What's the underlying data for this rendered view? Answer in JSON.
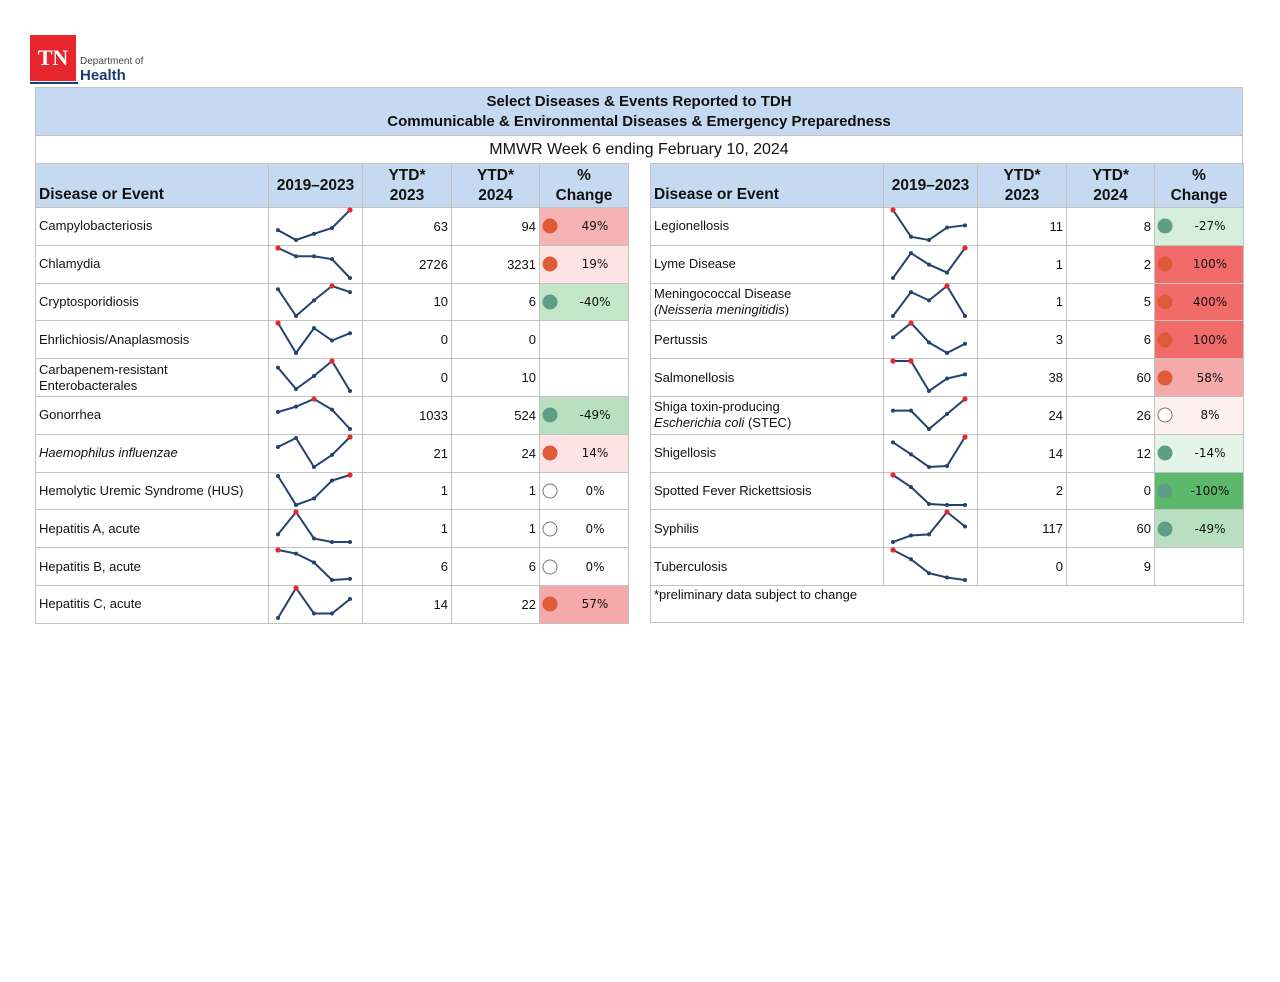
{
  "logo": {
    "mark": "TN",
    "line1": "Department of",
    "line2": "Health"
  },
  "header": {
    "title": [
      "Select Diseases & Events Reported to TDH",
      "Communicable & Environmental Diseases & Emergency Preparedness"
    ],
    "subtitle": "MMWR Week 6 ending February 10, 2024"
  },
  "columns": [
    [
      "Disease or Event"
    ],
    [
      "2019–2023"
    ],
    [
      "YTD*",
      "2023"
    ],
    [
      "YTD*",
      "2024"
    ],
    [
      "%",
      "Change"
    ]
  ],
  "left": [
    {
      "name": [
        [
          "Campylobacteriosis"
        ]
      ],
      "trend": [
        3.5,
        0.3,
        2.3,
        4.2,
        10
      ],
      "ytd2023": 63,
      "ytd2024": 94,
      "change": "49%",
      "fill": "#f6b3b3",
      "dot": "#e05a37"
    },
    {
      "name": [
        [
          "Chlamydia"
        ]
      ],
      "trend": [
        10,
        7.4,
        7.4,
        6.5,
        0.6
      ],
      "ytd2023": 2726,
      "ytd2024": 3231,
      "change": "19%",
      "fill": "#fde3e3",
      "dot": "#e05a37"
    },
    {
      "name": [
        [
          "Cryptosporidiosis"
        ]
      ],
      "trend": [
        9,
        0.6,
        5.5,
        10,
        8.1
      ],
      "ytd2023": 10,
      "ytd2024": 6,
      "change": "-40%",
      "fill": "#c3e6c9",
      "dot": "#5f9e86"
    },
    {
      "name": [
        [
          "Ehrlichiosis/Anaplasmosis"
        ]
      ],
      "trend": [
        10,
        0.6,
        8.4,
        4.5,
        6.8
      ],
      "ytd2023": 0,
      "ytd2024": 0
    },
    {
      "name": [
        [
          "Carbapenem-resistant"
        ],
        [
          "Enterobacterales"
        ]
      ],
      "trend": [
        8,
        1.6,
        5.5,
        10,
        1
      ],
      "ytd2023": 0,
      "ytd2024": 10
    },
    {
      "name": [
        [
          "Gonorrhea"
        ]
      ],
      "trend": [
        6.1,
        7.7,
        10,
        6.8,
        1
      ],
      "ytd2023": 1033,
      "ytd2024": 524,
      "change": "-49%",
      "fill": "#b8dfc0",
      "dot": "#5f9e86"
    },
    {
      "name": [
        [
          {
            "text": "Haemophilus influenzae",
            "italic": true
          }
        ]
      ],
      "trend": [
        7.1,
        9.7,
        1.3,
        4.8,
        10
      ],
      "ytd2023": 21,
      "ytd2024": 24,
      "change": "14%",
      "fill": "#fde3e3",
      "dot": "#e05a37"
    },
    {
      "name": [
        [
          "Hemolytic Uremic Syndrome (HUS)"
        ]
      ],
      "trend": [
        9.7,
        1.3,
        3.2,
        8.4,
        10
      ],
      "ytd2023": 1,
      "ytd2024": 1,
      "change": "0%",
      "fill": "#ffffff",
      "dot": "#ffffff"
    },
    {
      "name": [
        [
          "Hepatitis A, acute"
        ]
      ],
      "trend": [
        3.5,
        10,
        2.3,
        1.3,
        1.3
      ],
      "ytd2023": 1,
      "ytd2024": 1,
      "change": "0%",
      "fill": "#ffffff",
      "dot": "#ffffff"
    },
    {
      "name": [
        [
          "Hepatitis B, acute"
        ]
      ],
      "trend": [
        10,
        9,
        6.5,
        1.6,
        1.9
      ],
      "ytd2023": 6,
      "ytd2024": 6,
      "change": "0%",
      "fill": "#ffffff",
      "dot": "#ffffff"
    },
    {
      "name": [
        [
          "Hepatitis C, acute"
        ]
      ],
      "trend": [
        1.3,
        10,
        2.6,
        2.6,
        6.8
      ],
      "ytd2023": 14,
      "ytd2024": 22,
      "change": "57%",
      "fill": "#f6a9a9",
      "dot": "#e05a37"
    }
  ],
  "right": [
    {
      "name": [
        [
          "Legionellosis"
        ]
      ],
      "trend": [
        10,
        1.6,
        0.6,
        4.5,
        5.2
      ],
      "ytd2023": 11,
      "ytd2024": 8,
      "change": "-27%",
      "fill": "#d6eddb",
      "dot": "#5f9e86"
    },
    {
      "name": [
        [
          "Lyme Disease"
        ]
      ],
      "trend": [
        0.6,
        8.4,
        4.8,
        2.3,
        10
      ],
      "ytd2023": 1,
      "ytd2024": 2,
      "change": "100%",
      "fill": "#f26b6b",
      "dot": "#e05a37"
    },
    {
      "name": [
        [
          "Meningococcal Disease"
        ],
        [
          {
            "text": "(Neisseria meningitidis",
            "italic": true
          },
          ")"
        ]
      ],
      "trend": [
        0.6,
        8.1,
        5.5,
        10,
        0.6
      ],
      "ytd2023": 1,
      "ytd2024": 5,
      "change": "400%",
      "fill": "#f26b6b",
      "dot": "#e05a37"
    },
    {
      "name": [
        [
          "Pertussis"
        ]
      ],
      "trend": [
        5.5,
        10,
        3.9,
        0.6,
        3.5
      ],
      "ytd2023": 3,
      "ytd2024": 6,
      "change": "100%",
      "fill": "#f26b6b",
      "dot": "#e05a37"
    },
    {
      "name": [
        [
          "Salmonellosis"
        ]
      ],
      "trend": [
        10,
        10,
        0.6,
        4.5,
        5.8
      ],
      "ytd2023": 38,
      "ytd2024": 60,
      "change": "58%",
      "fill": "#f6a9a9",
      "dot": "#e05a37"
    },
    {
      "name": [
        [
          "Shiga toxin-producing"
        ],
        [
          {
            "text": "Escherichia coli",
            "italic": true
          },
          " (STEC)"
        ]
      ],
      "trend": [
        6.5,
        6.5,
        1,
        5.5,
        10
      ],
      "ytd2023": 24,
      "ytd2024": 26,
      "change": "8%",
      "fill": "#fdf0f0",
      "dot": "#ffffff"
    },
    {
      "name": [
        [
          "Shigellosis"
        ]
      ],
      "trend": [
        8.4,
        4.8,
        1,
        1.3,
        10
      ],
      "ytd2023": 14,
      "ytd2024": 12,
      "change": "-14%",
      "fill": "#e5f4e8",
      "dot": "#5f9e86"
    },
    {
      "name": [
        [
          "Spotted Fever Rickettsiosis"
        ]
      ],
      "trend": [
        10,
        6.5,
        1.6,
        1.3,
        1.3
      ],
      "ytd2023": 2,
      "ytd2024": 0,
      "change": "-100%",
      "fill": "#5cb86a",
      "dot": "#5f9e86"
    },
    {
      "name": [
        [
          "Syphilis"
        ]
      ],
      "trend": [
        1.3,
        3.2,
        3.5,
        10,
        5.8
      ],
      "ytd2023": 117,
      "ytd2024": 60,
      "change": "-49%",
      "fill": "#b8dfc0",
      "dot": "#5f9e86"
    },
    {
      "name": [
        [
          "Tuberculosis"
        ]
      ],
      "trend": [
        10,
        7.4,
        3.5,
        2.3,
        1.6
      ],
      "ytd2023": 0,
      "ytd2024": 9
    }
  ],
  "footnote": "*preliminary data subject to change"
}
